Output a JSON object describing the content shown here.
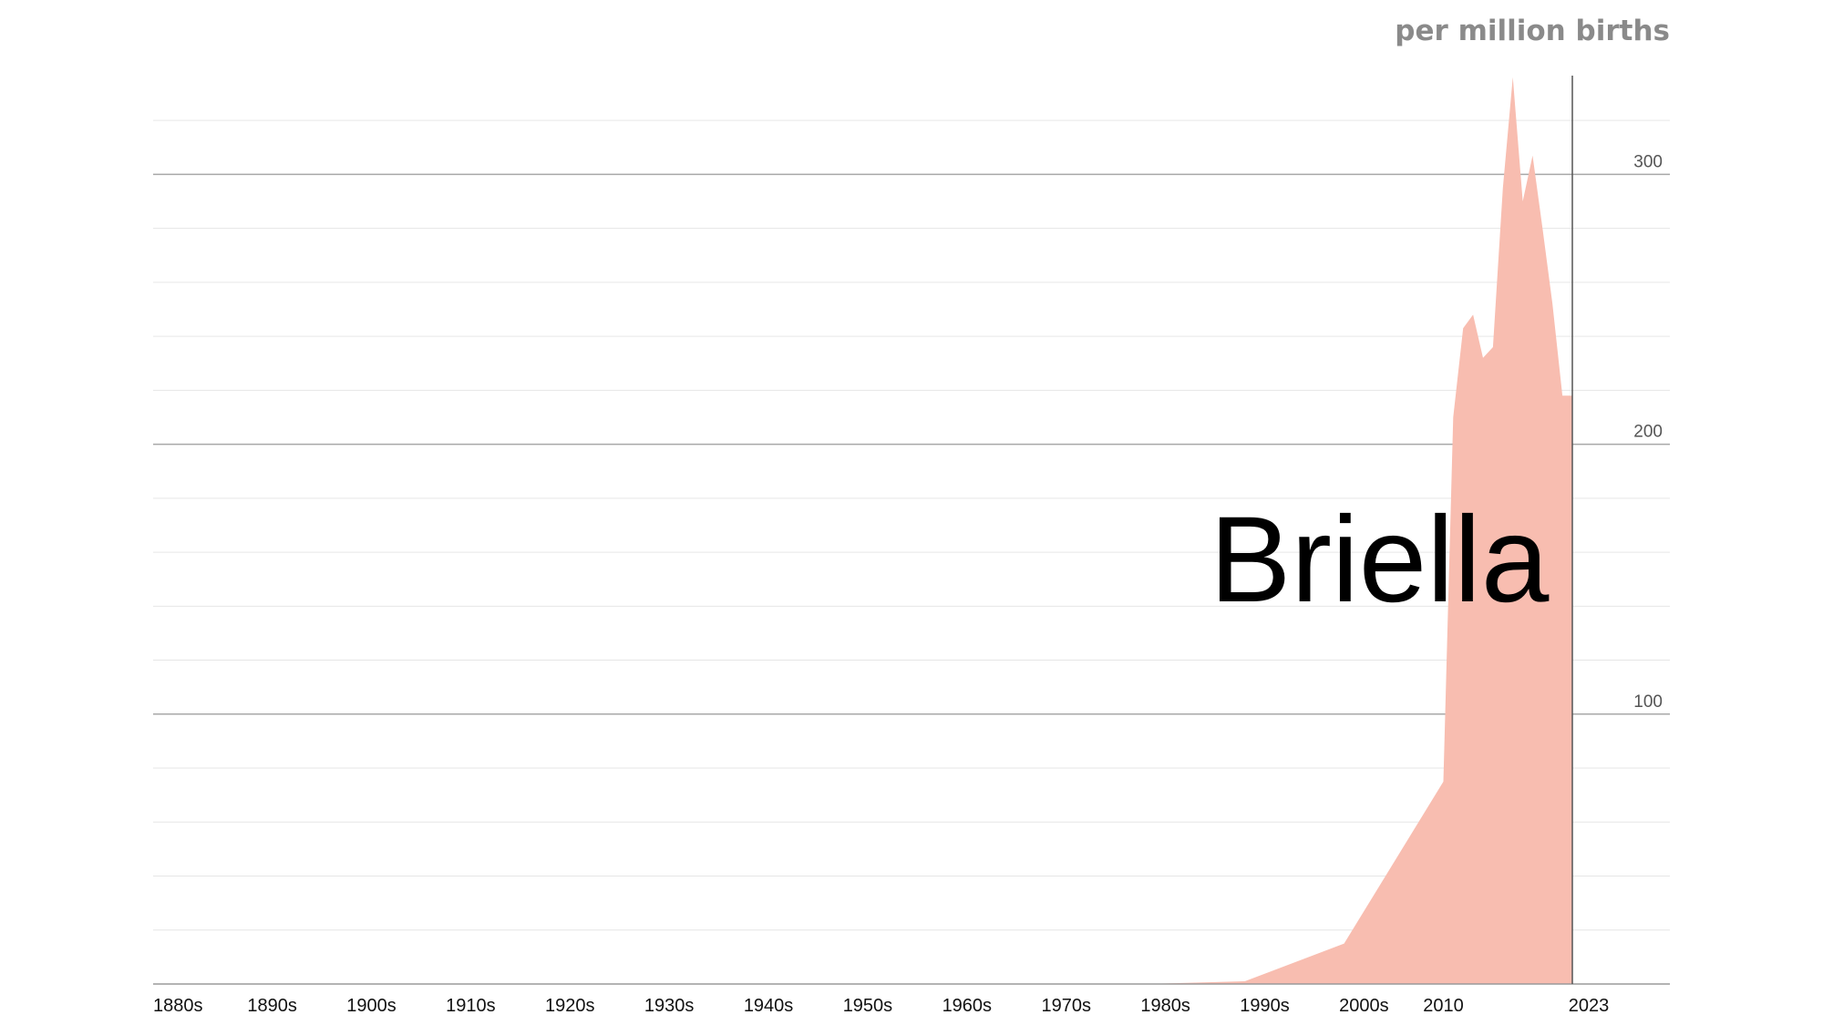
{
  "chart_data": {
    "type": "area",
    "title": "Briella",
    "unit_label": "per million births",
    "x_ticks": [
      "1880s",
      "1890s",
      "1900s",
      "1910s",
      "1920s",
      "1930s",
      "1940s",
      "1950s",
      "1960s",
      "1970s",
      "1980s",
      "1990s",
      "2000s",
      "2010",
      "2023"
    ],
    "y_ticks": [
      "100",
      "200",
      "300"
    ],
    "xlim": [
      1880,
      2023
    ],
    "ylim": [
      0,
      337
    ],
    "grid": true,
    "color": "#f8bdb0",
    "series": [
      {
        "x": [
          1880,
          1980,
          1990,
          2000,
          2010,
          2011,
          2012,
          2013,
          2014,
          2015,
          2016,
          2017,
          2018,
          2019,
          2020,
          2021,
          2022,
          2023
        ],
        "values": [
          0,
          0,
          1,
          15,
          75,
          210,
          243,
          248,
          232,
          236,
          295,
          336,
          290,
          307,
          280,
          252,
          218,
          218
        ]
      }
    ]
  }
}
